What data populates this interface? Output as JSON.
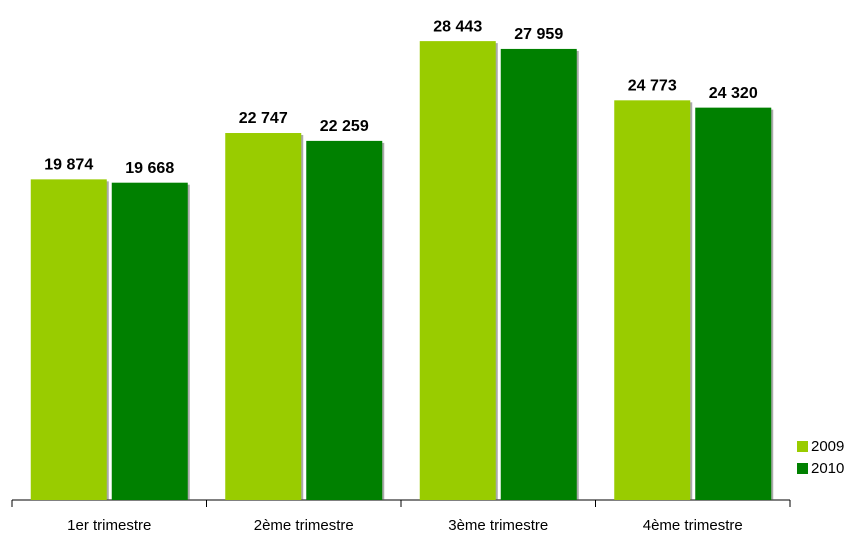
{
  "chart_data": {
    "type": "bar",
    "categories": [
      "1er trimestre",
      "2ème trimestre",
      "3ème trimestre",
      "4ème trimestre"
    ],
    "series": [
      {
        "name": "2009",
        "color": "#99cc00",
        "values": [
          19874,
          22747,
          28443,
          24773
        ],
        "value_labels": [
          "19 874",
          "22 747",
          "28 443",
          "24 773"
        ]
      },
      {
        "name": "2010",
        "color": "#008000",
        "values": [
          19668,
          22259,
          27959,
          24320
        ],
        "value_labels": [
          "19 668",
          "22 259",
          "27 959",
          "24 320"
        ]
      }
    ],
    "ylim": [
      0,
      30000
    ],
    "legend": "right"
  }
}
